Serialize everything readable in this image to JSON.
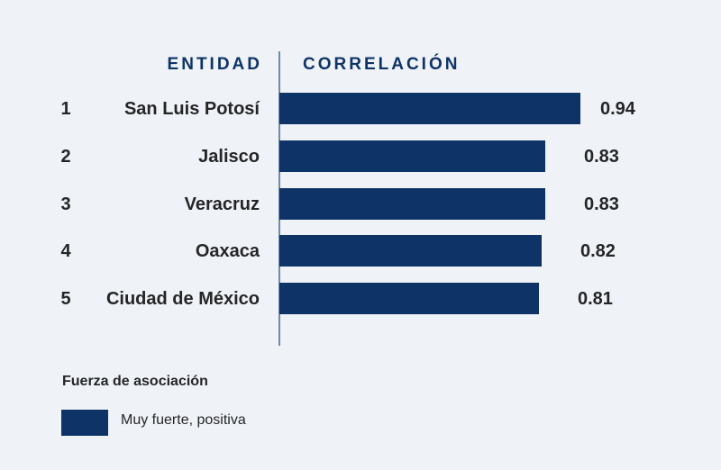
{
  "chart_data": {
    "type": "bar",
    "orientation": "horizontal",
    "headers": {
      "entity": "ENTIDAD",
      "value": "CORRELACIÓN"
    },
    "ranks": [
      "1",
      "2",
      "3",
      "4",
      "5"
    ],
    "categories": [
      "San Luis Potosí",
      "Jalisco",
      "Veracruz",
      "Oaxaca",
      "Ciudad de México"
    ],
    "values": [
      0.94,
      0.83,
      0.83,
      0.82,
      0.81
    ],
    "value_labels": [
      "0.94",
      "0.83",
      "0.83",
      "0.82",
      "0.81"
    ],
    "xlim": [
      0.0,
      0.94
    ],
    "grid": false,
    "bar_color": "#0e3366",
    "legend": {
      "title": "Fuerza de asociación",
      "items": [
        {
          "label": "Muy fuerte, positiva",
          "color": "#0e3366"
        }
      ],
      "placement": "bottom-left"
    }
  }
}
